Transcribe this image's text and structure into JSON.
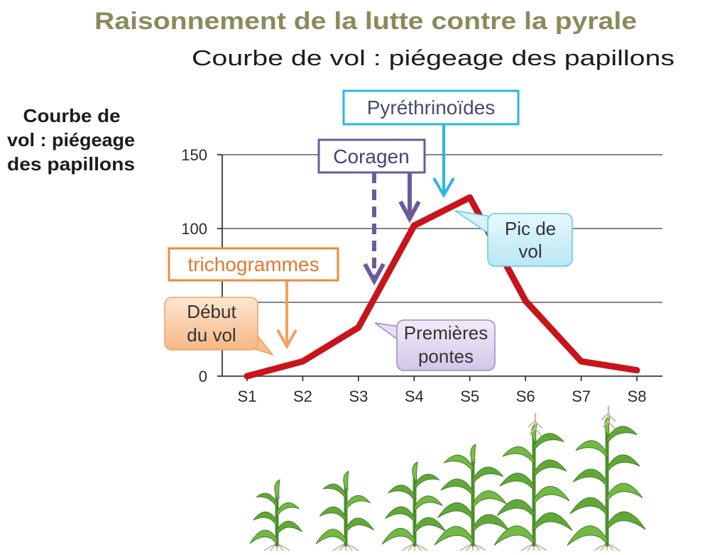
{
  "title": "Raisonnement de la lutte contre la pyrale",
  "subtitle": "Courbe de vol : piégeage des papillons",
  "side_label": [
    "Courbe de",
    "vol : piégeage",
    "des papillons"
  ],
  "treatments": {
    "pyrethrinoides": "Pyréthrinoïdes",
    "coragen": "Coragen",
    "trichogrammes": "trichogrammes"
  },
  "callouts": {
    "debut_vol": [
      "Début",
      "du vol"
    ],
    "premieres_pontes": [
      "Premières",
      "pontes"
    ],
    "pic_vol": [
      "Pic de",
      "vol"
    ]
  },
  "colors": {
    "title": "#8b8a5c",
    "line": "#c8141b",
    "pyrethrinoides": "#2bb6e1",
    "coragen": "#6b5b9a",
    "trichogrammes": "#f08a3a",
    "plant": "#6db33f"
  },
  "icons": {
    "illustration": "corn-plant-icon"
  },
  "chart_data": {
    "type": "line",
    "categories": [
      "S1",
      "S2",
      "S3",
      "S4",
      "S5",
      "S6",
      "S7",
      "S8"
    ],
    "series": [
      {
        "values": [
          0,
          10,
          33,
          102,
          121,
          51,
          10,
          4
        ]
      }
    ],
    "ylim": [
      0,
      150
    ],
    "yticks": [
      0,
      100,
      150
    ],
    "grid_lines": [
      0,
      50,
      100,
      150
    ],
    "grid": true
  }
}
